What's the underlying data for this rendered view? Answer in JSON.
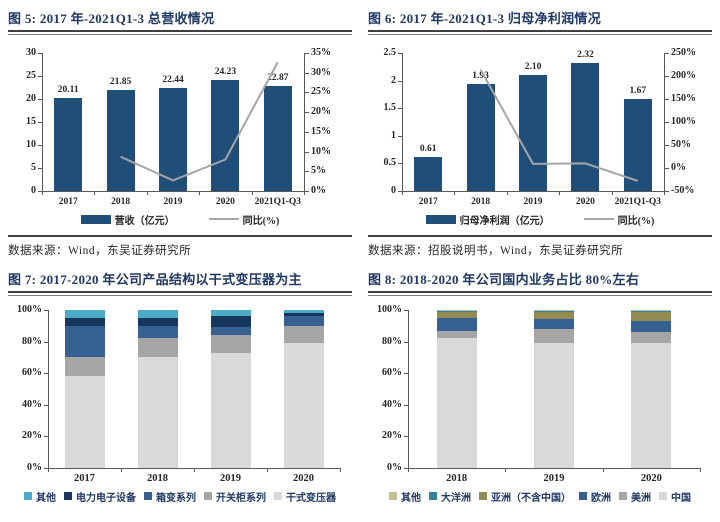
{
  "page_type": "research-report-chart-panel",
  "chart_data": [
    {
      "id": "fig5",
      "type": "bar+line",
      "title": "图 5:  2017 年-2021Q1-3 总营收情况",
      "source": "数据来源：Wind，东吴证券研究所",
      "categories": [
        "2017",
        "2018",
        "2019",
        "2020",
        "2021Q1-Q3"
      ],
      "bar_series": {
        "name": "营收（亿元）",
        "color": "#1f4e79",
        "values": [
          20.11,
          21.85,
          22.44,
          24.23,
          22.87
        ],
        "labels": [
          "20.11",
          "21.85",
          "22.44",
          "24.23",
          "22.87"
        ]
      },
      "line_series": {
        "name": "同比(%)",
        "color": "#a6a6a6",
        "values": [
          null,
          8.7,
          2.7,
          8.0,
          32.7
        ]
      },
      "left_axis": {
        "min": 0,
        "max": 30,
        "step": 5,
        "ticks": [
          "0",
          "5",
          "10",
          "15",
          "20",
          "25",
          "30"
        ]
      },
      "right_axis": {
        "min": 0,
        "max": 35,
        "step": 5,
        "ticks": [
          "0%",
          "5%",
          "10%",
          "15%",
          "20%",
          "25%",
          "30%",
          "35%"
        ]
      },
      "grid": false,
      "legend_position": "bottom"
    },
    {
      "id": "fig6",
      "type": "bar+line",
      "title": "图 6:  2017 年-2021Q1-3 归母净利润情况",
      "source": "数据来源：招股说明书，Wind，东吴证券研究所",
      "categories": [
        "2017",
        "2018",
        "2019",
        "2020",
        "2021Q1-Q3"
      ],
      "bar_series": {
        "name": "归母净利润（亿元）",
        "color": "#1f4e79",
        "values": [
          0.61,
          1.93,
          2.1,
          2.32,
          1.67
        ],
        "labels": [
          "0.61",
          "1.93",
          "2.10",
          "2.32",
          "1.67"
        ]
      },
      "line_series": {
        "name": "同比(%)",
        "color": "#a6a6a6",
        "values": [
          null,
          214,
          9,
          10,
          -28
        ]
      },
      "left_axis": {
        "min": 0,
        "max": 2.5,
        "step": 0.5,
        "ticks": [
          "0",
          "0.5",
          "1",
          "1.5",
          "2",
          "2.5"
        ]
      },
      "right_axis": {
        "min": -50,
        "max": 250,
        "step": 50,
        "ticks": [
          "-50%",
          "0%",
          "50%",
          "100%",
          "150%",
          "200%",
          "250%"
        ]
      },
      "grid": false,
      "legend_position": "bottom"
    },
    {
      "id": "fig7",
      "type": "stacked100",
      "title": "图 7:  2017-2020 年公司产品结构以干式变压器为主",
      "categories": [
        "2017",
        "2018",
        "2019",
        "2020"
      ],
      "series": [
        {
          "name": "干式变压器",
          "color": "#d9d9d9",
          "values": [
            58,
            70,
            73,
            79
          ]
        },
        {
          "name": "开关柜系列",
          "color": "#a6a6a6",
          "values": [
            12,
            12,
            11,
            11
          ]
        },
        {
          "name": "箱变系列",
          "color": "#376092",
          "values": [
            20,
            8,
            5,
            6
          ]
        },
        {
          "name": "电力电子设备",
          "color": "#17375e",
          "values": [
            5,
            5,
            7,
            2
          ]
        },
        {
          "name": "其他",
          "color": "#4bacc6",
          "values": [
            5,
            5,
            4,
            2
          ]
        }
      ],
      "legend_order": [
        "其他",
        "电力电子设备",
        "箱变系列",
        "开关柜系列",
        "干式变压器"
      ],
      "left_axis": {
        "min": 0,
        "max": 100,
        "step": 20,
        "ticks": [
          "0%",
          "20%",
          "40%",
          "60%",
          "80%",
          "100%"
        ]
      },
      "grid": false,
      "legend_position": "bottom"
    },
    {
      "id": "fig8",
      "type": "stacked100",
      "title": "图 8:  2018-2020 年公司国内业务占比 80%左右",
      "categories": [
        "2018",
        "2019",
        "2020"
      ],
      "series": [
        {
          "name": "中国",
          "color": "#d9d9d9",
          "values": [
            82,
            79,
            79
          ]
        },
        {
          "name": "美洲",
          "color": "#a6a6a6",
          "values": [
            5,
            9,
            7
          ]
        },
        {
          "name": "欧洲",
          "color": "#376092",
          "values": [
            8,
            6,
            7
          ]
        },
        {
          "name": "亚洲（不含中国）",
          "color": "#948a54",
          "values": [
            4,
            5,
            6
          ]
        },
        {
          "name": "大洋洲",
          "color": "#31859c",
          "values": [
            0.5,
            0.5,
            0.5
          ]
        },
        {
          "name": "其他",
          "color": "#c4bd97",
          "values": [
            0.5,
            0.5,
            0.5
          ]
        }
      ],
      "legend_order": [
        "其他",
        "大洋洲",
        "亚洲（不含中国）",
        "欧洲",
        "美洲",
        "中国"
      ],
      "left_axis": {
        "min": 0,
        "max": 100,
        "step": 20,
        "ticks": [
          "0%",
          "20%",
          "40%",
          "60%",
          "80%",
          "100%"
        ]
      },
      "grid": false,
      "legend_position": "bottom"
    }
  ],
  "colors": {
    "title_navy": "#1f3864",
    "bar_navy": "#1f4e79",
    "line_gray": "#a6a6a6",
    "axis": "#595959",
    "rule_dark": "#3f3f3f"
  }
}
